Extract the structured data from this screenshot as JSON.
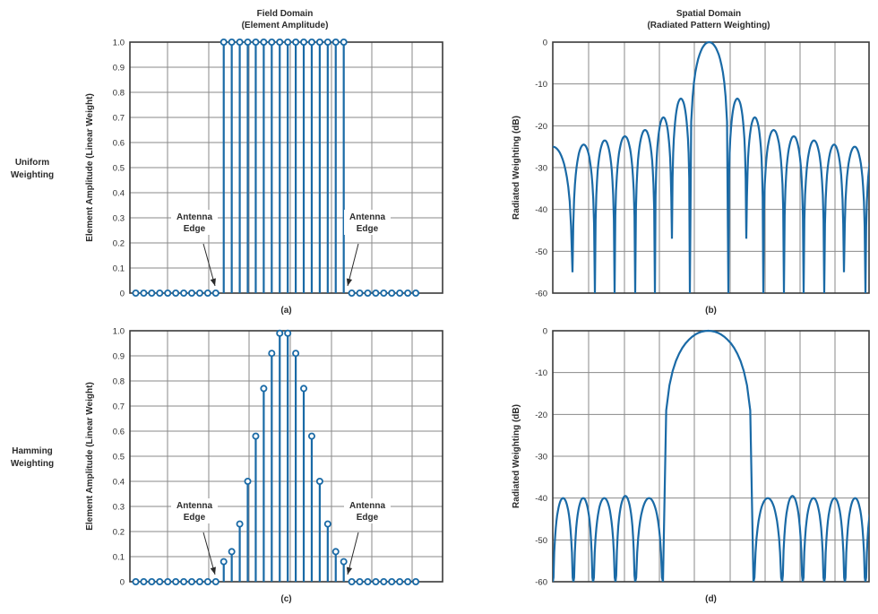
{
  "headers": {
    "field_title": "Field Domain",
    "field_subtitle": "(Element Amplitude)",
    "spatial_title": "Spatial Domain",
    "spatial_subtitle": "(Radiated Pattern Weighting)"
  },
  "row_labels": {
    "uniform": [
      "Uniform",
      "Weighting"
    ],
    "hamming": [
      "Hamming",
      "Weighting"
    ]
  },
  "colors": {
    "accent": "#1a6aa6",
    "grid": "#8a8a8a",
    "frame": "#3a3a3a"
  },
  "chart_data": [
    {
      "id": "a",
      "type": "stem",
      "caption": "(a)",
      "ylabel": "Element Amplitude (Linear Weight)",
      "yticks": [
        "1.0",
        "0.9",
        "0.8",
        "0.7",
        "0.6",
        "0.5",
        "0.4",
        "0.3",
        "0.2",
        "0.1",
        "0"
      ],
      "ylim": [
        0,
        1
      ],
      "n_elements": 36,
      "values": [
        0,
        0,
        0,
        0,
        0,
        0,
        0,
        0,
        0,
        0,
        0,
        1,
        1,
        1,
        1,
        1,
        1,
        1,
        1,
        1,
        1,
        1,
        1,
        1,
        1,
        1,
        1,
        0,
        0,
        0,
        0,
        0,
        0,
        0,
        0,
        0
      ],
      "annotations": [
        {
          "text": [
            "Antenna",
            "Edge"
          ],
          "side": "left"
        },
        {
          "text": [
            "Antenna",
            "Edge"
          ],
          "side": "right"
        }
      ]
    },
    {
      "id": "b",
      "type": "line",
      "caption": "(b)",
      "ylabel": "Radiated Weighting (dB)",
      "yticks": [
        "0",
        "-10",
        "-20",
        "-30",
        "-40",
        "-50",
        "-60"
      ],
      "ylim": [
        -60,
        0
      ],
      "sidelobe_peaks_db": [
        -25,
        -24.5,
        -23.5,
        -22.5,
        -21,
        -18,
        -13.5,
        0,
        -13.5,
        -18,
        -21,
        -22.5,
        -23.5,
        -24.5,
        -25
      ],
      "null_minimums_db": [
        -60,
        -55,
        -60,
        -60,
        -60,
        -60,
        -47,
        -60,
        -60,
        -47,
        -60,
        -60,
        -60,
        -60,
        -55,
        -60
      ]
    },
    {
      "id": "c",
      "type": "stem",
      "caption": "(c)",
      "ylabel": "Element Amplitude (Linear Weight)",
      "yticks": [
        "1.0",
        "0.9",
        "0.8",
        "0.7",
        "0.6",
        "0.5",
        "0.4",
        "0.3",
        "0.2",
        "0.1",
        "0"
      ],
      "ylim": [
        0,
        1
      ],
      "n_elements": 36,
      "values": [
        0,
        0,
        0,
        0,
        0,
        0,
        0,
        0,
        0,
        0,
        0,
        0.08,
        0.12,
        0.23,
        0.4,
        0.58,
        0.77,
        0.91,
        0.99,
        0.99,
        0.91,
        0.77,
        0.58,
        0.4,
        0.23,
        0.12,
        0.08,
        0,
        0,
        0,
        0,
        0,
        0,
        0,
        0,
        0
      ],
      "annotations": [
        {
          "text": [
            "Antenna",
            "Edge"
          ],
          "side": "left"
        },
        {
          "text": [
            "Antenna",
            "Edge"
          ],
          "side": "right"
        }
      ]
    },
    {
      "id": "d",
      "type": "line",
      "caption": "(d)",
      "ylabel": "Radiated Weighting (dB)",
      "yticks": [
        "0",
        "-10",
        "-20",
        "-30",
        "-40",
        "-50",
        "-60"
      ],
      "ylim": [
        -60,
        0
      ],
      "left_sidelobe_peaks_db": [
        -40,
        -40,
        -40,
        -39.5,
        -40
      ],
      "main_lobe_db": 0,
      "right_sidelobe_peaks_db": [
        -40,
        -39.5,
        -40,
        -40,
        -40
      ],
      "null_db": -60
    }
  ]
}
